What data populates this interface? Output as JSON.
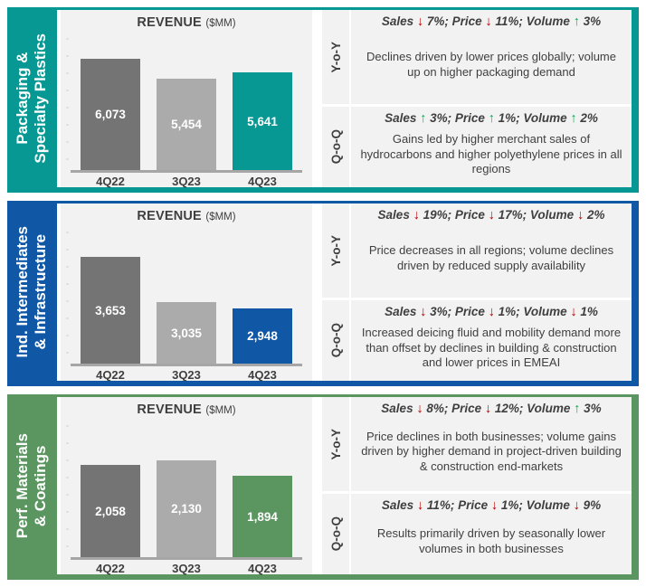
{
  "colors": {
    "teal": "#089894",
    "blue": "#1057A5",
    "green": "#5B9560",
    "bar_dark": "#747474",
    "bar_light": "#ABABAB",
    "cell_bg": "#F2F2F2",
    "text": "#3F3F3F",
    "arrow_up": "#00B050",
    "arrow_down": "#C00000",
    "baseline": "#A6A6A6"
  },
  "chart_data": [
    {
      "type": "bar",
      "title": "REVENUE ($MM)",
      "segment": "Packaging & Specialty Plastics",
      "categories": [
        "4Q22",
        "3Q23",
        "4Q23"
      ],
      "values": [
        6073,
        5454,
        5641
      ],
      "ylim": [
        2700,
        6800
      ],
      "grid": false,
      "legend": "none",
      "bar_colors": [
        "#747474",
        "#ABABAB",
        "#089894"
      ]
    },
    {
      "type": "bar",
      "title": "REVENUE ($MM)",
      "segment": "Ind. Intermediates & Infrastructure",
      "categories": [
        "4Q22",
        "3Q23",
        "4Q23"
      ],
      "values": [
        3653,
        3035,
        2948
      ],
      "ylim": [
        2200,
        4050
      ],
      "grid": false,
      "legend": "none",
      "bar_colors": [
        "#747474",
        "#ABABAB",
        "#1057A5"
      ]
    },
    {
      "type": "bar",
      "title": "REVENUE ($MM)",
      "segment": "Perf. Materials & Coatings",
      "categories": [
        "4Q22",
        "3Q23",
        "4Q23"
      ],
      "values": [
        2058,
        2130,
        1894
      ],
      "ylim": [
        600,
        2750
      ],
      "grid": false,
      "legend": "none",
      "bar_colors": [
        "#747474",
        "#ABABAB",
        "#5B9560"
      ]
    }
  ],
  "panels": [
    {
      "id": "packaging-specialty-plastics",
      "accent": "#089894",
      "sidebar": {
        "line1": "Packaging &",
        "line2": "Specialty Plastics"
      },
      "chart": {
        "title": "REVENUE",
        "unit": "($MM)",
        "categories": [
          "4Q22",
          "3Q23",
          "4Q23"
        ],
        "values": [
          6073,
          5454,
          5641
        ],
        "value_labels": [
          "6,073",
          "5,454",
          "5,641"
        ],
        "ylim": [
          2700,
          6800
        ]
      },
      "rows": [
        {
          "key": "yoy",
          "label": "Y-o-Y",
          "metrics": [
            {
              "name": "Sales",
              "dir": "down",
              "pct": "7%"
            },
            {
              "name": "Price",
              "dir": "down",
              "pct": "11%"
            },
            {
              "name": "Volume",
              "dir": "up",
              "pct": "3%"
            }
          ],
          "body": "Declines driven by lower prices globally; volume up on higher packaging demand"
        },
        {
          "key": "qoq",
          "label": "Q-o-Q",
          "metrics": [
            {
              "name": "Sales",
              "dir": "up",
              "pct": "3%"
            },
            {
              "name": "Price",
              "dir": "up",
              "pct": "1%"
            },
            {
              "name": "Volume",
              "dir": "up",
              "pct": "2%"
            }
          ],
          "body": "Gains led by higher merchant sales of hydrocarbons and higher polyethylene prices in all regions"
        }
      ]
    },
    {
      "id": "industrial-intermediates-infrastructure",
      "accent": "#1057A5",
      "sidebar": {
        "line1": "Ind. Intermediates",
        "line2": "& Infrastructure"
      },
      "chart": {
        "title": "REVENUE",
        "unit": "($MM)",
        "categories": [
          "4Q22",
          "3Q23",
          "4Q23"
        ],
        "values": [
          3653,
          3035,
          2948
        ],
        "value_labels": [
          "3,653",
          "3,035",
          "2,948"
        ],
        "ylim": [
          2200,
          4050
        ]
      },
      "rows": [
        {
          "key": "yoy",
          "label": "Y-o-Y",
          "metrics": [
            {
              "name": "Sales",
              "dir": "down",
              "pct": "19%"
            },
            {
              "name": "Price",
              "dir": "down",
              "pct": "17%"
            },
            {
              "name": "Volume",
              "dir": "down",
              "pct": "2%"
            }
          ],
          "body": "Price decreases in all regions; volume declines driven by reduced supply availability"
        },
        {
          "key": "qoq",
          "label": "Q-o-Q",
          "metrics": [
            {
              "name": "Sales",
              "dir": "down",
              "pct": "3%"
            },
            {
              "name": "Price",
              "dir": "down",
              "pct": "1%"
            },
            {
              "name": "Volume",
              "dir": "down",
              "pct": "1%"
            }
          ],
          "body": "Increased deicing fluid and mobility demand more than offset by declines in building & construction and lower prices in EMEAI"
        }
      ]
    },
    {
      "id": "performance-materials-coatings",
      "accent": "#5B9560",
      "sidebar": {
        "line1": "Perf. Materials",
        "line2": "& Coatings"
      },
      "chart": {
        "title": "REVENUE",
        "unit": "($MM)",
        "categories": [
          "4Q22",
          "3Q23",
          "4Q23"
        ],
        "values": [
          2058,
          2130,
          1894
        ],
        "value_labels": [
          "2,058",
          "2,130",
          "1,894"
        ],
        "ylim": [
          600,
          2750
        ]
      },
      "rows": [
        {
          "key": "yoy",
          "label": "Y-o-Y",
          "metrics": [
            {
              "name": "Sales",
              "dir": "down",
              "pct": "8%"
            },
            {
              "name": "Price",
              "dir": "down",
              "pct": "12%"
            },
            {
              "name": "Volume",
              "dir": "up",
              "pct": "3%"
            }
          ],
          "body": "Price declines in both businesses; volume gains driven by higher demand in project-driven building & construction end-markets"
        },
        {
          "key": "qoq",
          "label": "Q-o-Q",
          "metrics": [
            {
              "name": "Sales",
              "dir": "down",
              "pct": "11%"
            },
            {
              "name": "Price",
              "dir": "down",
              "pct": "1%"
            },
            {
              "name": "Volume",
              "dir": "down",
              "pct": "9%"
            }
          ],
          "body": "Results primarily driven by seasonally lower volumes in both businesses"
        }
      ]
    }
  ]
}
